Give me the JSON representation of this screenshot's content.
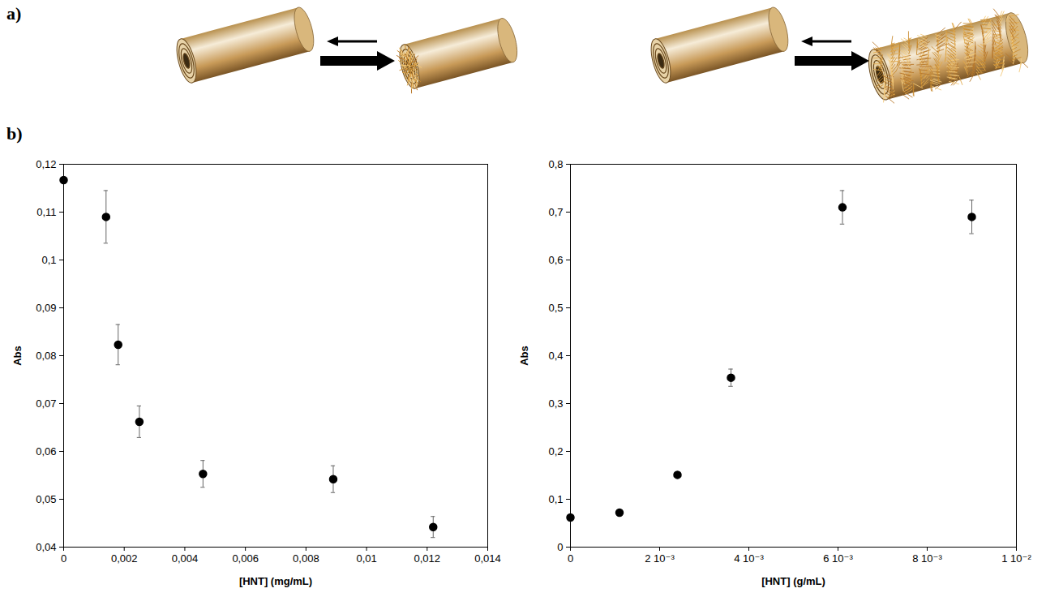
{
  "panel_labels": [
    "a)",
    "b)"
  ],
  "chart_data": [
    {
      "type": "scatter",
      "x": [
        0,
        0.0014,
        0.0018,
        0.0025,
        0.0046,
        0.0089,
        0.0122
      ],
      "values": [
        0.1167,
        0.109,
        0.0823,
        0.0662,
        0.0553,
        0.0542,
        0.0442
      ],
      "errors": [
        0,
        0.0055,
        0.0042,
        0.0033,
        0.0028,
        0.0028,
        0.0022
      ],
      "xlabel": "[HNT] (mg/mL)",
      "ylabel": "Abs",
      "xlim": [
        0,
        0.014
      ],
      "xticks": [
        0,
        {
          "value": 0.002,
          "label": "0,002"
        },
        {
          "value": 0.004,
          "label": "0,004"
        },
        {
          "value": 0.006,
          "label": "0,006"
        },
        {
          "value": 0.008,
          "label": "0,008"
        },
        {
          "value": 0.01,
          "label": "0,01"
        },
        {
          "value": 0.012,
          "label": "0,012"
        },
        {
          "value": 0.014,
          "label": "0,014"
        }
      ],
      "ylim": [
        0.04,
        0.12
      ],
      "yticks": [
        {
          "value": 0.04,
          "label": "0,04"
        },
        {
          "value": 0.05,
          "label": "0,05"
        },
        {
          "value": 0.06,
          "label": "0,06"
        },
        {
          "value": 0.07,
          "label": "0,07"
        },
        {
          "value": 0.08,
          "label": "0,08"
        },
        {
          "value": 0.09,
          "label": "0,09"
        },
        {
          "value": 0.1,
          "label": "0,1"
        },
        {
          "value": 0.11,
          "label": "0,11"
        },
        {
          "value": 0.12,
          "label": "0,12"
        }
      ],
      "color": "#000000",
      "marker": "circle",
      "grid": false
    },
    {
      "type": "scatter",
      "x": [
        0,
        0.0011,
        0.0024,
        0.0036,
        0.0061,
        0.009
      ],
      "values": [
        0.062,
        0.072,
        0.151,
        0.354,
        0.71,
        0.69
      ],
      "errors": [
        0,
        0,
        0,
        0.018,
        0.035,
        0.035
      ],
      "xlabel": "[HNT] (g/mL)",
      "ylabel": "Abs",
      "xlim": [
        0,
        0.01
      ],
      "xticks": [
        0,
        {
          "value": 0.002,
          "label": "2 10⁻³"
        },
        {
          "value": 0.004,
          "label": "4 10⁻³"
        },
        {
          "value": 0.006,
          "label": "6 10⁻³"
        },
        {
          "value": 0.008,
          "label": "8 10⁻³"
        },
        {
          "value": 0.01,
          "label": "1 10⁻²"
        }
      ],
      "ylim": [
        0,
        0.8
      ],
      "yticks": [
        0,
        {
          "value": 0.1,
          "label": "0,1"
        },
        {
          "value": 0.2,
          "label": "0,2"
        },
        {
          "value": 0.3,
          "label": "0,3"
        },
        {
          "value": 0.4,
          "label": "0,4"
        },
        {
          "value": 0.5,
          "label": "0,5"
        },
        {
          "value": 0.6,
          "label": "0,6"
        },
        {
          "value": 0.7,
          "label": "0,7"
        },
        {
          "value": 0.8,
          "label": "0,8"
        }
      ],
      "color": "#000000",
      "marker": "circle",
      "grid": false
    }
  ]
}
